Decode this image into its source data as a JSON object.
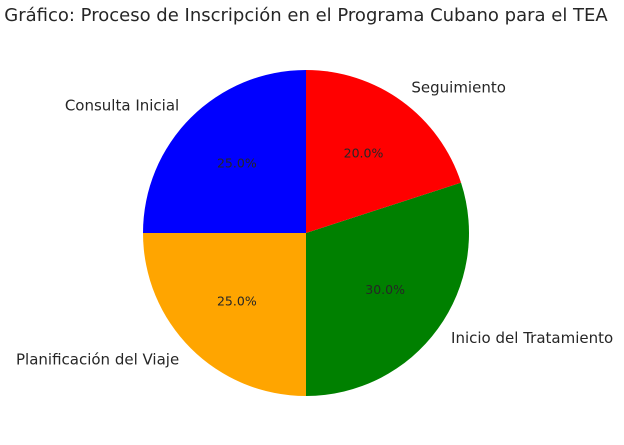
{
  "chart_data": {
    "type": "pie",
    "title": "Gráfico: Proceso de Inscripción en el Programa Cubano para el TEA",
    "categories": [
      "Consulta Inicial",
      "Planificación del Viaje",
      "Inicio del Tratamiento",
      "Seguimiento"
    ],
    "values": [
      25,
      25,
      30,
      20
    ],
    "value_labels": [
      "25.0%",
      "25.0%",
      "30.0%",
      "20.0%"
    ],
    "colors": [
      "#0000ff",
      "#ffa500",
      "#008000",
      "#ff0000"
    ]
  }
}
